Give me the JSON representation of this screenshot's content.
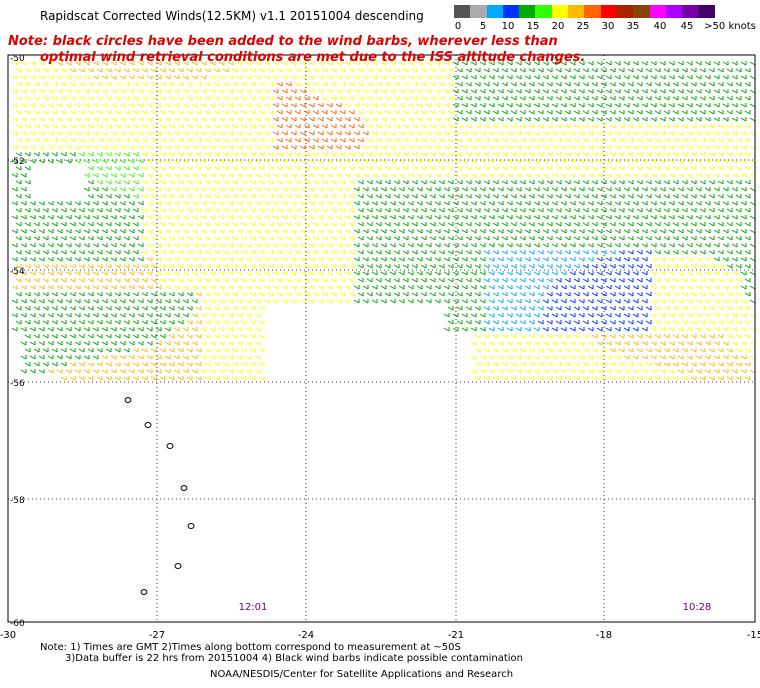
{
  "title": "Rapidscat Corrected Winds(12.5KM) v1.1 20151004 descending",
  "note_line1": "Note: black circles have been added to the wind barbs, wherever less than",
  "note_line2": "optimal wind retrieval conditions are met due to the ISS altitude changes.",
  "colorbar": {
    "colors": [
      "#555555",
      "#aaaaaa",
      "#00aaff",
      "#0033ff",
      "#00aa00",
      "#33ff00",
      "#ffff00",
      "#ffbb00",
      "#ff6600",
      "#ff0000",
      "#aa2200",
      "#884400",
      "#ff00ff",
      "#aa00ff",
      "#7700aa",
      "#440066"
    ],
    "labels": [
      "0",
      "5",
      "10",
      "15",
      "20",
      "25",
      "30",
      "35",
      "40",
      "45",
      ">50 knots"
    ]
  },
  "map": {
    "lon_ticks": [
      "-30",
      "-27",
      "-24",
      "-21",
      "-18",
      "-15"
    ],
    "lat_ticks": [
      "-50",
      "-52",
      "-54",
      "-56",
      "-58",
      "-60"
    ],
    "time_labels": [
      "12:01",
      "10:28"
    ]
  },
  "footer": {
    "line1": "Note: 1) Times are GMT 2)Times along bottom correspond to measurement at ~50S",
    "line2": "3)Data buffer is 22 hrs from 20151004 4) Black wind barbs indicate possible contamination",
    "line3": "NOAA/NESDIS/Center for Satellite Applications and Research"
  }
}
